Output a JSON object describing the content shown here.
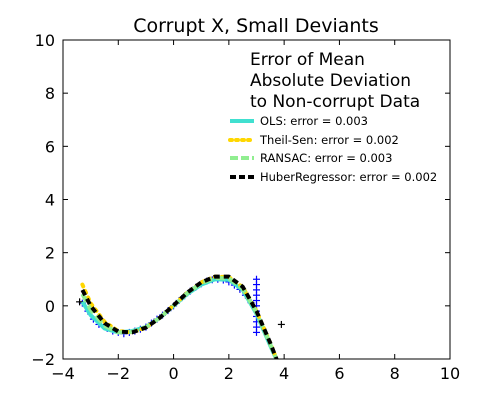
{
  "chart_data": {
    "type": "line",
    "title": "Corrupt X, Small Deviants",
    "xlabel": "",
    "ylabel": "",
    "xlim": [
      -4,
      10
    ],
    "ylim": [
      -2,
      10
    ],
    "xticks": [
      -4,
      -2,
      0,
      2,
      4,
      6,
      8,
      10
    ],
    "yticks": [
      -2,
      0,
      2,
      4,
      6,
      8,
      10
    ],
    "grid": false,
    "legend": {
      "placement": "top-right",
      "title_lines": [
        "Error of Mean",
        "Absolute Deviation",
        "to Non-corrupt Data"
      ],
      "entries": [
        "OLS: error = 0.003",
        "Theil-Sen: error = 0.002",
        "RANSAC: error = 0.003",
        "HuberRegressor: error = 0.002"
      ]
    },
    "series": [
      {
        "name": "OLS: error = 0.003",
        "color": "#40e0d0",
        "style": "solid",
        "x": [
          -3.3,
          -3.0,
          -2.5,
          -2.0,
          -1.5,
          -1.0,
          -0.5,
          0.0,
          0.5,
          1.0,
          1.5,
          2.0,
          2.5,
          3.0,
          3.5,
          3.8
        ],
        "y": [
          0.15,
          -0.35,
          -0.85,
          -1.0,
          -0.95,
          -0.8,
          -0.45,
          0.0,
          0.45,
          0.8,
          1.0,
          0.98,
          0.6,
          -0.3,
          -1.5,
          -2.2
        ]
      },
      {
        "name": "Theil-Sen: error = 0.002",
        "color": "#ffd700",
        "style": "dotted",
        "x": [
          -3.3,
          -3.0,
          -2.5,
          -2.0,
          -1.5,
          -1.0,
          -0.5,
          0.0,
          0.5,
          1.0,
          1.5,
          2.0,
          2.5,
          3.0,
          3.5,
          3.8
        ],
        "y": [
          0.8,
          0.1,
          -0.6,
          -0.95,
          -1.0,
          -0.82,
          -0.45,
          0.02,
          0.5,
          0.88,
          1.1,
          1.08,
          0.7,
          -0.2,
          -1.4,
          -2.2
        ]
      },
      {
        "name": "RANSAC: error = 0.003",
        "color": "#90ee90",
        "style": "dashed",
        "x": [
          -3.3,
          -3.0,
          -2.5,
          -2.0,
          -1.5,
          -1.0,
          -0.5,
          0.0,
          0.5,
          1.0,
          1.5,
          2.0,
          2.5,
          3.0,
          3.5,
          3.8
        ],
        "y": [
          0.45,
          -0.15,
          -0.75,
          -1.0,
          -0.98,
          -0.8,
          -0.45,
          0.0,
          0.48,
          0.85,
          1.05,
          1.03,
          0.65,
          -0.25,
          -1.45,
          -2.2
        ]
      },
      {
        "name": "HuberRegressor: error = 0.002",
        "color": "#000000",
        "style": "dashed",
        "x": [
          -3.3,
          -3.0,
          -2.5,
          -2.0,
          -1.5,
          -1.0,
          -0.5,
          0.0,
          0.5,
          1.0,
          1.5,
          2.0,
          2.5,
          3.0,
          3.5,
          3.8
        ],
        "y": [
          0.6,
          0.0,
          -0.65,
          -0.97,
          -1.0,
          -0.82,
          -0.45,
          0.02,
          0.5,
          0.88,
          1.1,
          1.1,
          0.72,
          -0.2,
          -1.4,
          -2.2
        ]
      }
    ],
    "scatter": {
      "marker": "+",
      "color": "#0000ff",
      "outlier_color": "#000000",
      "points": [
        {
          "x": -3.3,
          "y": 0.1
        },
        {
          "x": -3.1,
          "y": -0.2
        },
        {
          "x": -2.9,
          "y": -0.5
        },
        {
          "x": -2.7,
          "y": -0.7
        },
        {
          "x": -2.4,
          "y": -0.85
        },
        {
          "x": -2.2,
          "y": -0.95
        },
        {
          "x": -2.0,
          "y": -1.0
        },
        {
          "x": -1.8,
          "y": -1.05
        },
        {
          "x": -1.6,
          "y": -1.0
        },
        {
          "x": -1.4,
          "y": -0.95
        },
        {
          "x": -1.2,
          "y": -0.88
        },
        {
          "x": -1.0,
          "y": -0.8
        },
        {
          "x": -0.8,
          "y": -0.65
        },
        {
          "x": -0.6,
          "y": -0.5
        },
        {
          "x": -0.4,
          "y": -0.35
        },
        {
          "x": -0.2,
          "y": -0.18
        },
        {
          "x": 0.0,
          "y": 0.0
        },
        {
          "x": 0.2,
          "y": 0.2
        },
        {
          "x": 0.4,
          "y": 0.38
        },
        {
          "x": 0.6,
          "y": 0.55
        },
        {
          "x": 0.8,
          "y": 0.7
        },
        {
          "x": 1.0,
          "y": 0.83
        },
        {
          "x": 1.2,
          "y": 0.93
        },
        {
          "x": 1.4,
          "y": 0.98
        },
        {
          "x": 1.6,
          "y": 1.0
        },
        {
          "x": 1.8,
          "y": 0.97
        },
        {
          "x": 2.0,
          "y": 0.9
        },
        {
          "x": 2.2,
          "y": 0.78
        },
        {
          "x": 2.4,
          "y": 0.62
        },
        {
          "x": 2.6,
          "y": 0.4
        },
        {
          "x": 2.8,
          "y": 0.12
        },
        {
          "x": 3.0,
          "y": 1.0
        },
        {
          "x": 3.0,
          "y": 0.8
        },
        {
          "x": 3.0,
          "y": 0.6
        },
        {
          "x": 3.0,
          "y": 0.4
        },
        {
          "x": 3.0,
          "y": 0.2
        },
        {
          "x": 3.0,
          "y": 0.0
        },
        {
          "x": 3.0,
          "y": -0.2
        },
        {
          "x": 3.0,
          "y": -0.4
        },
        {
          "x": 3.0,
          "y": -0.6
        },
        {
          "x": 3.0,
          "y": -0.8
        },
        {
          "x": 3.0,
          "y": -1.0
        }
      ],
      "outliers": [
        {
          "x": 2.5,
          "y": 0.6
        },
        {
          "x": 3.9,
          "y": -0.7
        },
        {
          "x": -3.4,
          "y": 0.15
        }
      ]
    }
  }
}
